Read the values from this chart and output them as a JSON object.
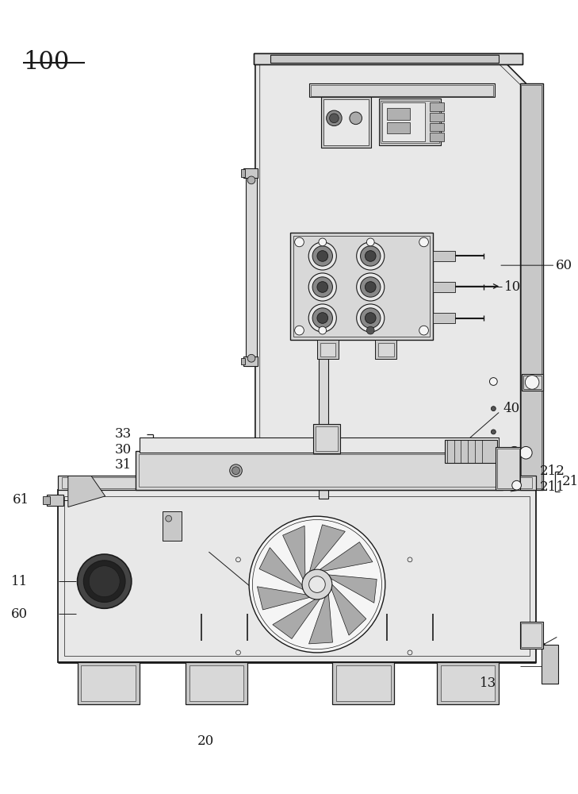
{
  "bg_color": "#ffffff",
  "lc": "#1a1a1a",
  "figsize": [
    7.29,
    10.0
  ],
  "dpi": 100,
  "lw_main": 1.2,
  "lw_med": 0.8,
  "lw_thin": 0.5,
  "fc_light": "#e8e8e8",
  "fc_med": "#d8d8d8",
  "fc_dark": "#c8c8c8",
  "fc_darker": "#b0b0b0",
  "fc_white": "#f5f5f5"
}
